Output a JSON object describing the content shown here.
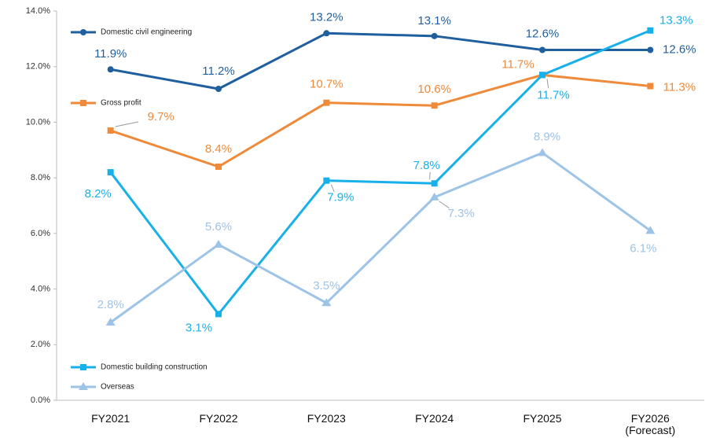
{
  "chart_data": {
    "type": "line",
    "categories": [
      "FY2021",
      "FY2022",
      "FY2023",
      "FY2024",
      "FY2025",
      "FY2026\n(Forecast)"
    ],
    "ylim": [
      0,
      14
    ],
    "yticks": [
      {
        "value": 0,
        "label": "0.0%"
      },
      {
        "value": 2,
        "label": "2.0%"
      },
      {
        "value": 4,
        "label": "4.0%"
      },
      {
        "value": 6,
        "label": "6.0%"
      },
      {
        "value": 8,
        "label": "8.0%"
      },
      {
        "value": 10,
        "label": "10.0%"
      },
      {
        "value": 12,
        "label": "12.0%"
      },
      {
        "value": 14,
        "label": "14.0%"
      }
    ],
    "grid": false,
    "series": [
      {
        "name": "Domestic civil engineering",
        "color": "#1f5f9e",
        "marker": "circle",
        "values": [
          11.9,
          11.2,
          13.2,
          13.1,
          12.6,
          12.6
        ],
        "value_labels": [
          "11.9%",
          "11.2%",
          "13.2%",
          "13.1%",
          "12.6%",
          "12.6%"
        ]
      },
      {
        "name": "Gross profit",
        "color": "#ee8a3a",
        "marker": "square",
        "values": [
          9.7,
          8.4,
          10.7,
          10.6,
          11.7,
          11.3
        ],
        "value_labels": [
          "9.7%",
          "8.4%",
          "10.7%",
          "10.6%",
          "11.7%",
          "11.3%"
        ]
      },
      {
        "name": "Domestic building construction",
        "color": "#18b0e8",
        "marker": "square",
        "values": [
          8.2,
          3.1,
          7.9,
          7.8,
          11.7,
          13.3
        ],
        "value_labels": [
          "8.2%",
          "3.1%",
          "7.9%",
          "7.8%",
          "11.7%",
          "13.3%"
        ]
      },
      {
        "name": "Overseas",
        "color": "#9dc3e6",
        "marker": "triangle",
        "values": [
          2.8,
          5.6,
          3.5,
          7.3,
          8.9,
          6.1
        ],
        "value_labels": [
          "2.8%",
          "5.6%",
          "3.5%",
          "7.3%",
          "8.9%",
          "6.1%"
        ]
      }
    ]
  }
}
